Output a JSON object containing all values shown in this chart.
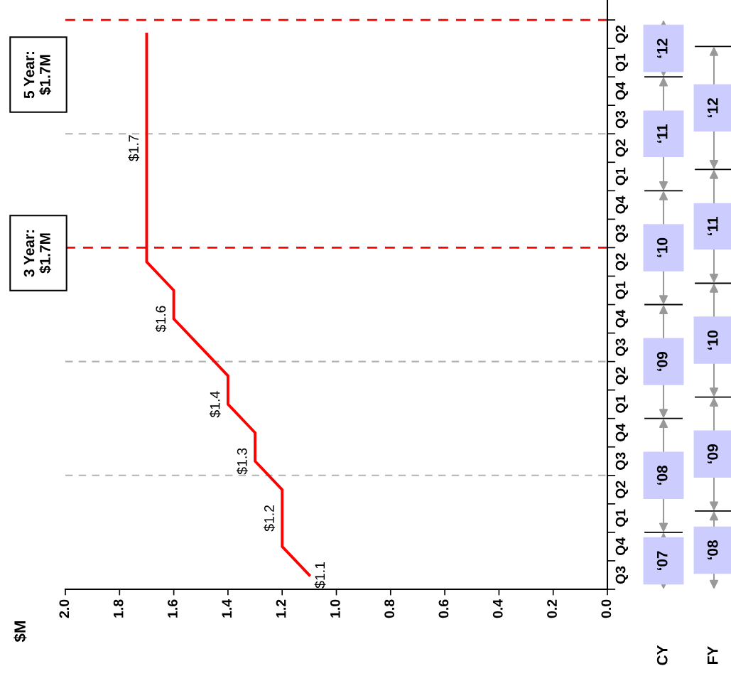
{
  "chart_data": {
    "type": "line",
    "orientation": "horizontal",
    "ylabel": "$M",
    "categories": [
      "Q2",
      "Q1",
      "Q4",
      "Q3",
      "Q2",
      "Q1",
      "Q4",
      "Q3",
      "Q2",
      "Q1",
      "Q4",
      "Q3",
      "Q2",
      "Q1",
      "Q4",
      "Q3",
      "Q2",
      "Q1",
      "Q4",
      "Q3"
    ],
    "series": [
      {
        "color": "#ff0000",
        "values": [
          1.7,
          1.7,
          1.7,
          1.7,
          1.7,
          1.7,
          1.7,
          1.7,
          1.7,
          1.6,
          1.6,
          1.5,
          1.4,
          1.4,
          1.3,
          1.3,
          1.2,
          1.2,
          1.2,
          1.1
        ],
        "value_labels": [
          null,
          null,
          null,
          null,
          "$1.7",
          null,
          null,
          null,
          null,
          null,
          "$1.6",
          null,
          null,
          "$1.4",
          null,
          "$1.3",
          null,
          "$1.2",
          null,
          "$1.1"
        ]
      }
    ],
    "xlim": [
      2.0,
      0
    ],
    "xticks": [
      {
        "value": 0,
        "label": "0.0"
      },
      {
        "value": 0.2,
        "label": "0.2"
      },
      {
        "value": 0.4,
        "label": "0.4"
      },
      {
        "value": 0.6,
        "label": "0.6"
      },
      {
        "value": 0.8,
        "label": "0.8"
      },
      {
        "value": 1.0,
        "label": "1.0"
      },
      {
        "value": 1.2,
        "label": "1.2"
      },
      {
        "value": 1.4,
        "label": "1.4"
      },
      {
        "value": 1.6,
        "label": "1.6"
      },
      {
        "value": 1.8,
        "label": "1.8"
      },
      {
        "value": 2.0,
        "label": "2.0"
      }
    ],
    "annotations": [
      "3 Year:\n$1.7M",
      "5 Year:\n$1.7M",
      "CY",
      "‘07",
      "‘08",
      "‘09",
      "‘10",
      "‘11",
      "‘12",
      "FY",
      "‘08",
      "‘09",
      "‘10",
      "‘11",
      "‘12"
    ]
  }
}
